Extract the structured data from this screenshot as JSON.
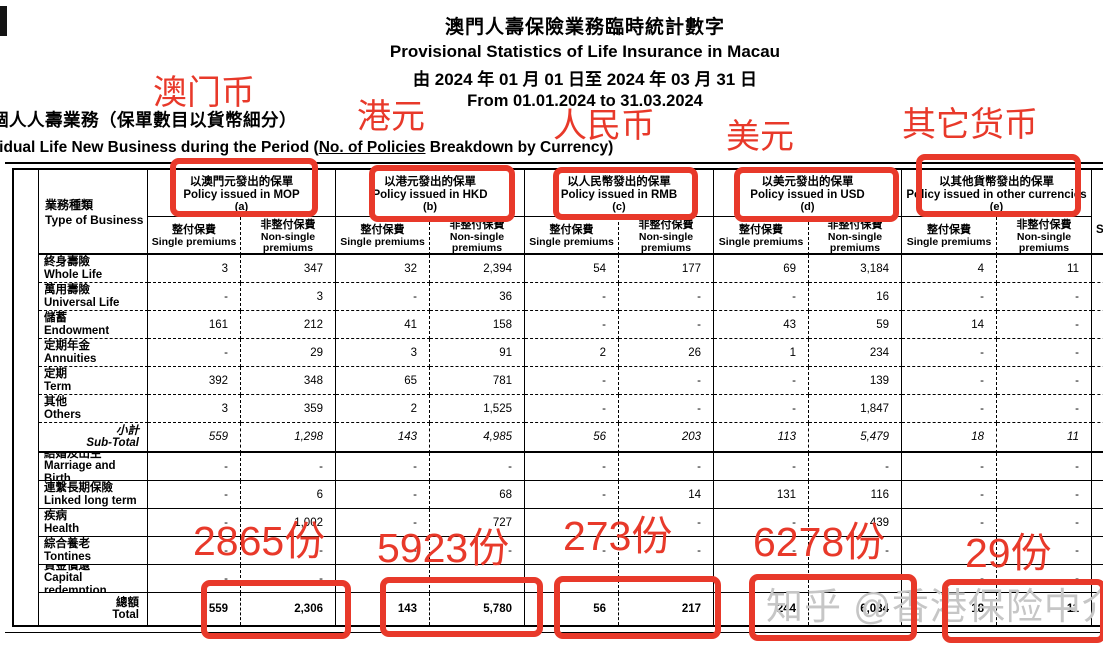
{
  "title": {
    "zh": "澳門人壽保險業務臨時統計數字",
    "en": "Provisional Statistics of Life Insurance in Macau",
    "date_zh": "由 2024 年 01 月 01 日至 2024 年 03 月 31 日",
    "date_en": "From 01.01.2024 to 31.03.2024"
  },
  "section": {
    "heading_zh": "個人人壽業務（保單數目以貨幣細分）",
    "heading_en_prefix": "Individual Life New Business during the Period (",
    "heading_en_underline": "No. of Policies",
    "heading_en_suffix": " Breakdown by Currency)"
  },
  "annotations": {
    "red_color": "#e8392a",
    "currency_labels": [
      {
        "id": "mop",
        "text": "澳门币"
      },
      {
        "id": "hkd",
        "text": "港元"
      },
      {
        "id": "rmb",
        "text": "人民币"
      },
      {
        "id": "usd",
        "text": "美元"
      },
      {
        "id": "other",
        "text": "其它货币"
      }
    ],
    "total_counts": [
      {
        "id": "mop",
        "text": "2865份"
      },
      {
        "id": "hkd",
        "text": "5923份"
      },
      {
        "id": "rmb",
        "text": "273份"
      },
      {
        "id": "usd",
        "text": "6278份"
      },
      {
        "id": "other",
        "text": "29份"
      }
    ],
    "watermark": "知乎 @香港保险中介"
  },
  "table": {
    "corner_zh": "業務種類",
    "corner_en": "Type of Business",
    "groups": [
      {
        "zh": "以澳門元發出的保單",
        "en": "Policy issued in MOP",
        "letter": "(a)"
      },
      {
        "zh": "以港元發出的保單",
        "en": "Policy issued in HKD",
        "letter": "(b)"
      },
      {
        "zh": "以人民幣發出的保單",
        "en": "Policy issued in RMB",
        "letter": "(c)"
      },
      {
        "zh": "以美元發出的保單",
        "en": "Policy issued in USD",
        "letter": "(d)"
      },
      {
        "zh": "以其他貨幣發出的保單",
        "en": "Policy issued in other currencies",
        "letter": "(e)"
      }
    ],
    "subheader": {
      "single_zh": "整付保費",
      "single_en": "Single premiums",
      "nonsingle_zh": "非整付保費",
      "nonsingle_en": "Non-single premiums"
    },
    "partial_col_text": "S",
    "rows": [
      {
        "zh": "終身壽險",
        "en": "Whole Life",
        "kind": "upper",
        "values": [
          "3",
          "347",
          "32",
          "2,394",
          "54",
          "177",
          "69",
          "3,184",
          "4",
          "11"
        ]
      },
      {
        "zh": "萬用壽險",
        "en": "Universal Life",
        "kind": "upper",
        "values": [
          "-",
          "3",
          "-",
          "36",
          "-",
          "-",
          "-",
          "16",
          "-",
          "-"
        ]
      },
      {
        "zh": "儲蓄",
        "en": "Endowment",
        "kind": "upper",
        "values": [
          "161",
          "212",
          "41",
          "158",
          "-",
          "-",
          "43",
          "59",
          "14",
          "-"
        ]
      },
      {
        "zh": "定期年金",
        "en": "Annuities",
        "kind": "upper",
        "values": [
          "-",
          "29",
          "3",
          "91",
          "2",
          "26",
          "1",
          "234",
          "-",
          "-"
        ]
      },
      {
        "zh": "定期",
        "en": "Term",
        "kind": "upper",
        "values": [
          "392",
          "348",
          "65",
          "781",
          "-",
          "-",
          "-",
          "139",
          "-",
          "-"
        ]
      },
      {
        "zh": "其他",
        "en": "Others",
        "kind": "upper",
        "values": [
          "3",
          "359",
          "2",
          "1,525",
          "-",
          "-",
          "-",
          "1,847",
          "-",
          "-"
        ]
      },
      {
        "zh": "小計",
        "en": "Sub-Total",
        "kind": "subtotal",
        "values": [
          "559",
          "1,298",
          "143",
          "4,985",
          "56",
          "203",
          "113",
          "5,479",
          "18",
          "11"
        ]
      },
      {
        "zh": "結婚及出生",
        "en": "Marriage and Birth",
        "kind": "lower",
        "values": [
          "-",
          "-",
          "-",
          "-",
          "-",
          "-",
          "-",
          "-",
          "-",
          "-"
        ]
      },
      {
        "zh": "連繫長期保險",
        "en": "Linked long term",
        "kind": "lower",
        "values": [
          "-",
          "6",
          "-",
          "68",
          "-",
          "14",
          "131",
          "116",
          "-",
          "-"
        ]
      },
      {
        "zh": "疾病",
        "en": "Health",
        "kind": "lower",
        "values": [
          "-",
          "1,002",
          "-",
          "727",
          "-",
          "-",
          "-",
          "439",
          "-",
          "-"
        ]
      },
      {
        "zh": "綜合養老",
        "en": "Tontines",
        "kind": "lower",
        "values": [
          "-",
          "-",
          "-",
          "-",
          "-",
          "-",
          "-",
          "-",
          "-",
          "-"
        ]
      },
      {
        "zh": "資金償還",
        "en": "Capital redemption",
        "kind": "lower",
        "values": [
          "-",
          "-",
          "-",
          "-",
          "-",
          "-",
          "-",
          "-",
          "-",
          "-"
        ]
      },
      {
        "zh": "總額",
        "en": "Total",
        "kind": "total",
        "values": [
          "559",
          "2,306",
          "143",
          "5,780",
          "56",
          "217",
          "244",
          "6,034",
          "18",
          "11"
        ]
      }
    ]
  }
}
